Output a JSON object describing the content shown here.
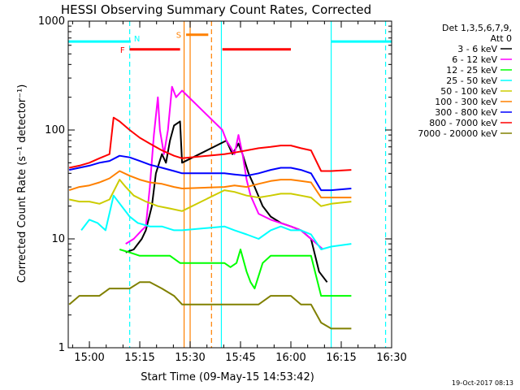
{
  "chart_data": {
    "type": "line",
    "title": "HESSI Observing Summary Count Rates, Corrected",
    "xlabel": "Start Time (09-May-15 14:53:42)",
    "ylabel": "Corrected Count Rate (s⁻¹ detector⁻¹)",
    "footer": "19-Oct-2017 08:13",
    "y_scale": "log",
    "ylim": [
      1,
      1000
    ],
    "xlim": [
      14.895,
      16.5
    ],
    "y_ticks": [
      {
        "v": 1,
        "label": "1"
      },
      {
        "v": 10,
        "label": "10"
      },
      {
        "v": 100,
        "label": "100"
      },
      {
        "v": 1000,
        "label": "1000"
      }
    ],
    "x_ticks": [
      {
        "v": 15.0,
        "label": "15:00"
      },
      {
        "v": 15.25,
        "label": "15:15"
      },
      {
        "v": 15.5,
        "label": "15:30"
      },
      {
        "v": 15.75,
        "label": "15:45"
      },
      {
        "v": 16.0,
        "label": "16:00"
      },
      {
        "v": 16.25,
        "label": "16:15"
      },
      {
        "v": 16.5,
        "label": "16:30"
      }
    ],
    "legend": {
      "header": [
        "Det 1,3,5,6,7,9,",
        "Att 0"
      ],
      "position": "right"
    },
    "series": [
      {
        "name": "3 - 6 keV",
        "color": "#000000",
        "points": [
          [
            15.18,
            7.5
          ],
          [
            15.22,
            8
          ],
          [
            15.26,
            10
          ],
          [
            15.28,
            12
          ],
          [
            15.31,
            20
          ],
          [
            15.33,
            40
          ],
          [
            15.36,
            60
          ],
          [
            15.38,
            50
          ],
          [
            15.4,
            80
          ],
          [
            15.42,
            110
          ],
          [
            15.45,
            120
          ],
          [
            15.46,
            50
          ],
          [
            15.68,
            80
          ],
          [
            15.71,
            60
          ],
          [
            15.74,
            75
          ],
          [
            15.76,
            60
          ],
          [
            15.79,
            40
          ],
          [
            15.82,
            30
          ],
          [
            15.86,
            20
          ],
          [
            15.9,
            16
          ],
          [
            15.95,
            14
          ],
          [
            16.0,
            13
          ],
          [
            16.05,
            12
          ],
          [
            16.1,
            10
          ],
          [
            16.14,
            5
          ],
          [
            16.18,
            4
          ]
        ]
      },
      {
        "name": "6 - 12 keV",
        "color": "#ff00ff",
        "points": [
          [
            15.18,
            9
          ],
          [
            15.22,
            10
          ],
          [
            15.26,
            12
          ],
          [
            15.28,
            13
          ],
          [
            15.3,
            30
          ],
          [
            15.32,
            90
          ],
          [
            15.34,
            200
          ],
          [
            15.35,
            100
          ],
          [
            15.37,
            60
          ],
          [
            15.39,
            100
          ],
          [
            15.41,
            250
          ],
          [
            15.43,
            200
          ],
          [
            15.46,
            230
          ],
          [
            15.66,
            100
          ],
          [
            15.68,
            80
          ],
          [
            15.7,
            70
          ],
          [
            15.72,
            60
          ],
          [
            15.74,
            90
          ],
          [
            15.76,
            60
          ],
          [
            15.78,
            35
          ],
          [
            15.8,
            25
          ],
          [
            15.84,
            17
          ],
          [
            15.9,
            15
          ],
          [
            16.0,
            13
          ],
          [
            16.05,
            12
          ],
          [
            16.1,
            10
          ],
          [
            16.16,
            8
          ]
        ]
      },
      {
        "name": "12 - 25 keV",
        "color": "#00ff00",
        "points": [
          [
            15.15,
            8
          ],
          [
            15.2,
            7.5
          ],
          [
            15.25,
            7
          ],
          [
            15.3,
            7
          ],
          [
            15.35,
            7
          ],
          [
            15.4,
            7
          ],
          [
            15.45,
            6
          ],
          [
            15.67,
            6
          ],
          [
            15.7,
            5.5
          ],
          [
            15.73,
            6
          ],
          [
            15.75,
            8
          ],
          [
            15.78,
            5
          ],
          [
            15.8,
            4
          ],
          [
            15.82,
            3.5
          ],
          [
            15.86,
            6
          ],
          [
            15.9,
            7
          ],
          [
            15.95,
            7
          ],
          [
            16.0,
            7
          ],
          [
            16.05,
            7
          ],
          [
            16.1,
            7
          ],
          [
            16.15,
            3
          ],
          [
            16.3,
            3
          ]
        ]
      },
      {
        "name": "25 - 50 keV",
        "color": "#00ffff",
        "points": [
          [
            14.96,
            12
          ],
          [
            15.0,
            15
          ],
          [
            15.04,
            14
          ],
          [
            15.08,
            12
          ],
          [
            15.12,
            25
          ],
          [
            15.16,
            20
          ],
          [
            15.2,
            16
          ],
          [
            15.24,
            14
          ],
          [
            15.3,
            13
          ],
          [
            15.36,
            13
          ],
          [
            15.42,
            12
          ],
          [
            15.46,
            12
          ],
          [
            15.67,
            13
          ],
          [
            15.72,
            12
          ],
          [
            15.78,
            11
          ],
          [
            15.84,
            10
          ],
          [
            15.9,
            12
          ],
          [
            15.95,
            13
          ],
          [
            16.0,
            12
          ],
          [
            16.05,
            12
          ],
          [
            16.1,
            11
          ],
          [
            16.15,
            8
          ],
          [
            16.2,
            8.5
          ],
          [
            16.3,
            9
          ]
        ]
      },
      {
        "name": "50 - 100 keV",
        "color": "#cccc00",
        "points": [
          [
            14.9,
            23
          ],
          [
            14.95,
            22
          ],
          [
            15.0,
            22
          ],
          [
            15.05,
            21
          ],
          [
            15.1,
            23
          ],
          [
            15.15,
            35
          ],
          [
            15.18,
            30
          ],
          [
            15.22,
            25
          ],
          [
            15.28,
            22
          ],
          [
            15.34,
            20
          ],
          [
            15.4,
            19
          ],
          [
            15.46,
            18
          ],
          [
            15.67,
            28
          ],
          [
            15.72,
            27
          ],
          [
            15.78,
            25
          ],
          [
            15.84,
            24
          ],
          [
            15.9,
            25
          ],
          [
            15.95,
            26
          ],
          [
            16.0,
            26
          ],
          [
            16.05,
            25
          ],
          [
            16.1,
            24
          ],
          [
            16.15,
            20
          ],
          [
            16.2,
            21
          ],
          [
            16.3,
            22
          ]
        ]
      },
      {
        "name": "100 - 300 keV",
        "color": "#ff8000",
        "points": [
          [
            14.9,
            28
          ],
          [
            14.95,
            30
          ],
          [
            15.0,
            31
          ],
          [
            15.05,
            33
          ],
          [
            15.1,
            36
          ],
          [
            15.15,
            42
          ],
          [
            15.2,
            38
          ],
          [
            15.25,
            35
          ],
          [
            15.3,
            33
          ],
          [
            15.36,
            32
          ],
          [
            15.42,
            30
          ],
          [
            15.46,
            29
          ],
          [
            15.67,
            30
          ],
          [
            15.72,
            31
          ],
          [
            15.78,
            30
          ],
          [
            15.84,
            32
          ],
          [
            15.9,
            34
          ],
          [
            15.95,
            35
          ],
          [
            16.0,
            35
          ],
          [
            16.05,
            34
          ],
          [
            16.1,
            33
          ],
          [
            16.15,
            24
          ],
          [
            16.2,
            24
          ],
          [
            16.3,
            24
          ]
        ]
      },
      {
        "name": "300 - 800 keV",
        "color": "#0000ff",
        "points": [
          [
            14.9,
            43
          ],
          [
            14.95,
            45
          ],
          [
            15.0,
            47
          ],
          [
            15.05,
            50
          ],
          [
            15.1,
            52
          ],
          [
            15.15,
            58
          ],
          [
            15.2,
            56
          ],
          [
            15.25,
            52
          ],
          [
            15.3,
            48
          ],
          [
            15.36,
            45
          ],
          [
            15.42,
            42
          ],
          [
            15.46,
            40
          ],
          [
            15.67,
            40
          ],
          [
            15.72,
            39
          ],
          [
            15.78,
            38
          ],
          [
            15.84,
            40
          ],
          [
            15.9,
            43
          ],
          [
            15.95,
            45
          ],
          [
            16.0,
            45
          ],
          [
            16.05,
            43
          ],
          [
            16.1,
            40
          ],
          [
            16.15,
            28
          ],
          [
            16.2,
            28
          ],
          [
            16.3,
            29
          ]
        ]
      },
      {
        "name": "800 - 7000 keV",
        "color": "#ff0000",
        "points": [
          [
            14.9,
            45
          ],
          [
            14.95,
            47
          ],
          [
            15.0,
            50
          ],
          [
            15.05,
            55
          ],
          [
            15.1,
            60
          ],
          [
            15.12,
            130
          ],
          [
            15.15,
            120
          ],
          [
            15.2,
            100
          ],
          [
            15.25,
            85
          ],
          [
            15.3,
            75
          ],
          [
            15.36,
            65
          ],
          [
            15.42,
            58
          ],
          [
            15.46,
            55
          ],
          [
            15.67,
            60
          ],
          [
            15.72,
            62
          ],
          [
            15.78,
            65
          ],
          [
            15.84,
            68
          ],
          [
            15.9,
            70
          ],
          [
            15.95,
            72
          ],
          [
            16.0,
            72
          ],
          [
            16.05,
            68
          ],
          [
            16.1,
            65
          ],
          [
            16.15,
            42
          ],
          [
            16.2,
            42
          ],
          [
            16.3,
            43
          ]
        ]
      },
      {
        "name": "7000 - 20000 keV",
        "color": "#808000",
        "points": [
          [
            14.9,
            2.5
          ],
          [
            14.95,
            3
          ],
          [
            15.0,
            3
          ],
          [
            15.05,
            3
          ],
          [
            15.1,
            3.5
          ],
          [
            15.15,
            3.5
          ],
          [
            15.2,
            3.5
          ],
          [
            15.25,
            4
          ],
          [
            15.3,
            4
          ],
          [
            15.36,
            3.5
          ],
          [
            15.42,
            3
          ],
          [
            15.46,
            2.5
          ],
          [
            15.67,
            2.5
          ],
          [
            15.72,
            2.5
          ],
          [
            15.78,
            2.5
          ],
          [
            15.84,
            2.5
          ],
          [
            15.9,
            3
          ],
          [
            15.95,
            3
          ],
          [
            16.0,
            3
          ],
          [
            16.05,
            2.5
          ],
          [
            16.1,
            2.5
          ],
          [
            16.15,
            1.7
          ],
          [
            16.2,
            1.5
          ],
          [
            16.3,
            1.5
          ]
        ]
      }
    ],
    "flag_bars": [
      {
        "label": "F",
        "color": "#ff0000",
        "y": 550,
        "segments": [
          [
            15.2,
            15.45
          ],
          [
            15.66,
            16.0
          ]
        ]
      },
      {
        "label": "S",
        "color": "#ff8000",
        "y": 750,
        "segments": [
          [
            15.48,
            15.59
          ]
        ]
      },
      {
        "label": "N",
        "color": "#00ffff",
        "y": 650,
        "segments": [
          [
            14.895,
            15.205
          ],
          [
            16.2,
            16.5
          ]
        ]
      }
    ],
    "vertical_lines": [
      {
        "x": 15.2,
        "color": "#00ffff",
        "dashed": true
      },
      {
        "x": 15.47,
        "color": "#ff8000",
        "dashed": false
      },
      {
        "x": 15.5,
        "color": "#ff8000",
        "dashed": false
      },
      {
        "x": 15.606,
        "color": "#ff8000",
        "dashed": true
      },
      {
        "x": 15.655,
        "color": "#00ffff",
        "dashed": false
      },
      {
        "x": 16.2,
        "color": "#00ffff",
        "dashed": false
      },
      {
        "x": 16.47,
        "color": "#00ffff",
        "dashed": true
      }
    ],
    "grid": false
  }
}
